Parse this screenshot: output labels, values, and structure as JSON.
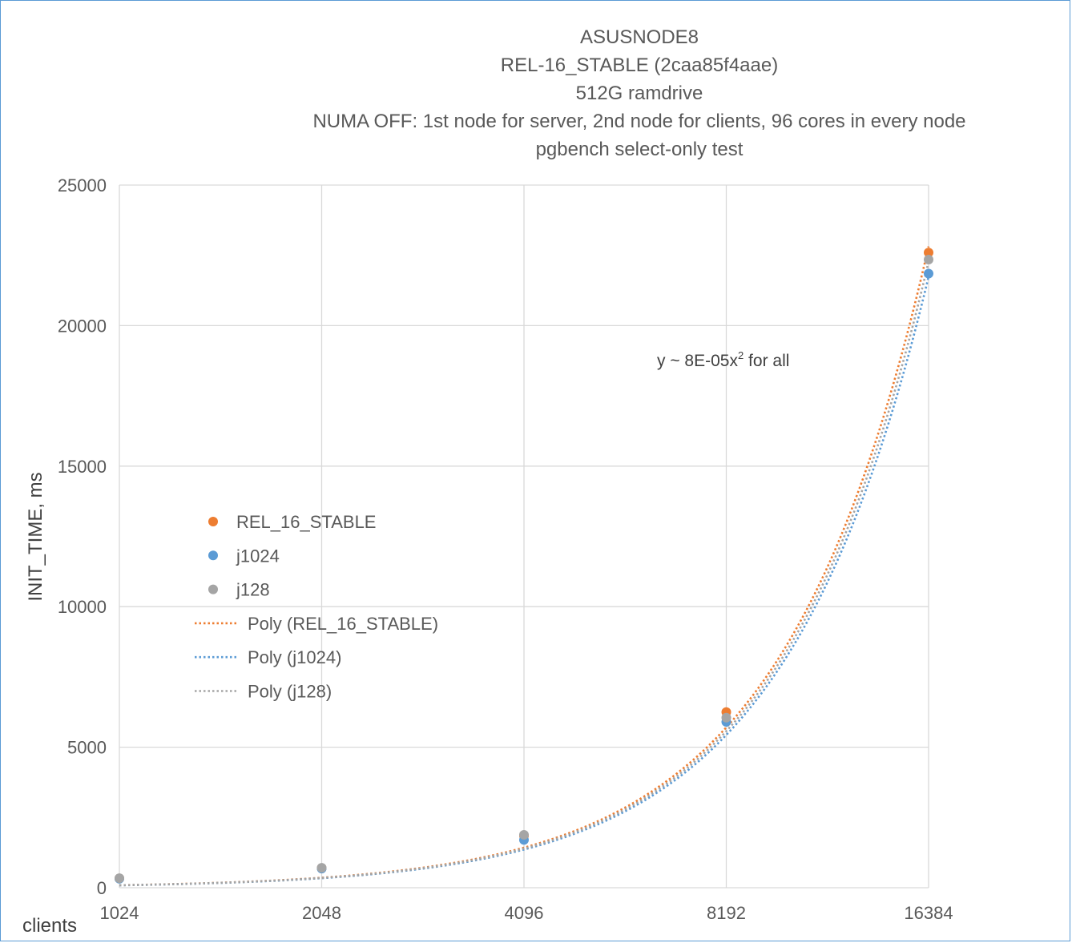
{
  "chart_data": {
    "type": "scatter",
    "title_lines": [
      "ASUSNODE8",
      "REL-16_STABLE (2caa85f4aae)",
      "512G ramdrive",
      "NUMA OFF: 1st node for server, 2nd node for clients, 96 cores in every node",
      "pgbench select-only test"
    ],
    "xlabel": "clients",
    "ylabel": "INIT_TIME, ms",
    "x_scale": "log2",
    "x_ticks": [
      "1024",
      "2048",
      "4096",
      "8192",
      "16384"
    ],
    "x_tick_values": [
      1024,
      2048,
      4096,
      8192,
      16384
    ],
    "ylim": [
      0,
      25000
    ],
    "y_ticks": [
      "0",
      "5000",
      "10000",
      "15000",
      "20000",
      "25000"
    ],
    "y_tick_values": [
      0,
      5000,
      10000,
      15000,
      20000,
      25000
    ],
    "grid": true,
    "legend_position": "left",
    "annotation": {
      "prefix": "y ~ 8E-05x",
      "sup": "2",
      "suffix": " for all"
    },
    "series": [
      {
        "name": "REL_16_STABLE",
        "color": "#ed7d31",
        "x": [
          1024,
          2048,
          4096,
          8192,
          16384
        ],
        "y": [
          330,
          700,
          1850,
          6250,
          22600
        ]
      },
      {
        "name": "j1024",
        "color": "#5b9bd5",
        "x": [
          1024,
          2048,
          4096,
          8192,
          16384
        ],
        "y": [
          320,
          680,
          1700,
          5900,
          21850
        ]
      },
      {
        "name": "j128",
        "color": "#a5a5a5",
        "x": [
          1024,
          2048,
          4096,
          8192,
          16384
        ],
        "y": [
          340,
          710,
          1880,
          6050,
          22350
        ]
      }
    ],
    "trendlines": [
      {
        "name": "Poly (REL_16_STABLE)",
        "color": "#ed7d31",
        "coef": 8.5e-05
      },
      {
        "name": "Poly (j1024)",
        "color": "#5b9bd5",
        "coef": 8.1e-05
      },
      {
        "name": "Poly (j128)",
        "color": "#a5a5a5",
        "coef": 8.3e-05
      }
    ]
  }
}
